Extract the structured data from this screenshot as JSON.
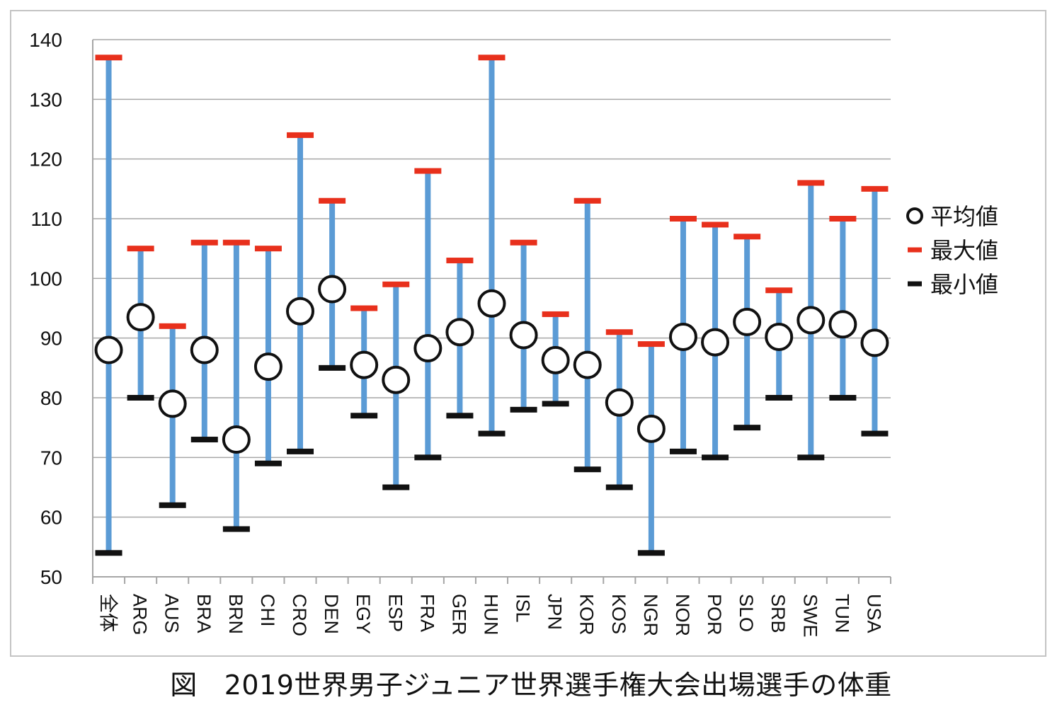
{
  "caption": {
    "prefix": "図",
    "text": "2019世界男子ジュニア世界選手権大会出場選手の体重"
  },
  "colors": {
    "range_bar": "#5b9bd5",
    "max_marker": "#e8301c",
    "min_marker": "#111111",
    "mean_fill": "#ffffff",
    "mean_stroke": "#111111",
    "grid": "#a6a6a6"
  },
  "chart_data": {
    "type": "scatter",
    "subtype": "range-with-mean (min / max / average)",
    "title": "",
    "xlabel": "",
    "ylabel": "",
    "ylim": [
      50,
      140
    ],
    "yticks": [
      50,
      60,
      70,
      80,
      90,
      100,
      110,
      120,
      130,
      140
    ],
    "grid": true,
    "legend_position": "right",
    "legend": [
      {
        "key": "mean",
        "label": "平均値"
      },
      {
        "key": "max",
        "label": "最大値"
      },
      {
        "key": "min",
        "label": "最小値"
      }
    ],
    "categories": [
      "全体",
      "ARG",
      "AUS",
      "BRA",
      "BRN",
      "CHI",
      "CRO",
      "DEN",
      "EGY",
      "ESP",
      "FRA",
      "GER",
      "HUN",
      "ISL",
      "JPN",
      "KOR",
      "KOS",
      "NGR",
      "NOR",
      "POR",
      "SLO",
      "SRB",
      "SWE",
      "TUN",
      "USA"
    ],
    "series": [
      {
        "name": "最大値",
        "values": [
          137,
          105,
          92,
          106,
          106,
          105,
          124,
          113,
          95,
          99,
          118,
          103,
          137,
          106,
          94,
          113,
          91,
          89,
          110,
          109,
          107,
          98,
          116,
          110,
          115
        ]
      },
      {
        "name": "最小値",
        "values": [
          54,
          80,
          62,
          73,
          58,
          69,
          71,
          85,
          77,
          65,
          70,
          77,
          74,
          78,
          79,
          68,
          65,
          54,
          71,
          70,
          75,
          80,
          70,
          80,
          74
        ]
      },
      {
        "name": "平均値",
        "values": [
          88,
          93.5,
          79,
          88,
          73,
          85.2,
          94.5,
          98.2,
          85.5,
          83,
          88.3,
          91,
          95.8,
          90.5,
          86.3,
          85.5,
          79.2,
          74.8,
          90.2,
          89.3,
          92.7,
          90.2,
          93,
          92.3,
          89.2
        ]
      }
    ]
  }
}
